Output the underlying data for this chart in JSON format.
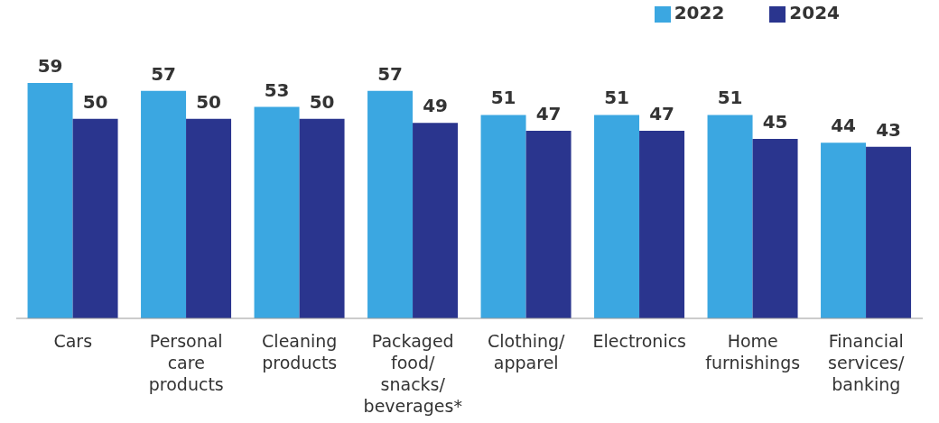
{
  "chart_data": {
    "type": "bar",
    "categories": [
      "Cars",
      "Personal care products",
      "Cleaning products",
      "Packaged food/ snacks/ beverages*",
      "Clothing/ apparel",
      "Electronics",
      "Home furnishings",
      "Financial services/ banking"
    ],
    "series": [
      {
        "name": "2022",
        "color": "#3ba7e1",
        "values": [
          59,
          57,
          53,
          57,
          51,
          51,
          51,
          44
        ]
      },
      {
        "name": "2024",
        "color": "#2a358e",
        "values": [
          50,
          50,
          50,
          49,
          47,
          47,
          45,
          43
        ]
      }
    ],
    "data_labels": true,
    "legend": "top right",
    "grid": false,
    "tick_labels": "x"
  }
}
